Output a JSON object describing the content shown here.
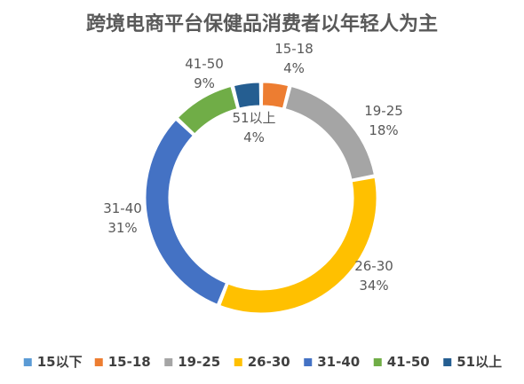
{
  "chart_data": {
    "type": "pie",
    "title": "跨境电商平台保健品消费者以年轻人为主",
    "categories": [
      "15以下",
      "15-18",
      "19-25",
      "26-30",
      "31-40",
      "41-50",
      "51以上"
    ],
    "values": [
      0,
      4,
      18,
      34,
      31,
      9,
      4
    ],
    "data_labels": [
      {
        "category": "15-18",
        "percent": "4%"
      },
      {
        "category": "19-25",
        "percent": "18%"
      },
      {
        "category": "26-30",
        "percent": "34%"
      },
      {
        "category": "31-40",
        "percent": "31%"
      },
      {
        "category": "41-50",
        "percent": "9%"
      },
      {
        "category": "51以上",
        "percent": "4%"
      }
    ],
    "colors": [
      "#5B9BD5",
      "#ED7D31",
      "#A5A5A5",
      "#FFC000",
      "#4472C4",
      "#70AD47",
      "#255E91"
    ],
    "style": "doughnut",
    "legend_position": "bottom"
  }
}
